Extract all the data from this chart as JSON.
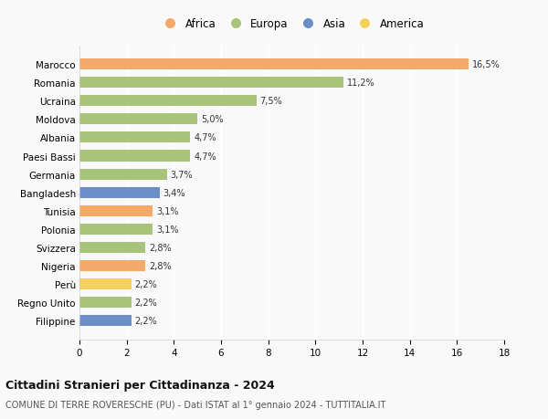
{
  "countries": [
    "Marocco",
    "Romania",
    "Ucraina",
    "Moldova",
    "Albania",
    "Paesi Bassi",
    "Germania",
    "Bangladesh",
    "Tunisia",
    "Polonia",
    "Svizzera",
    "Nigeria",
    "Perù",
    "Regno Unito",
    "Filippine"
  ],
  "values": [
    16.5,
    11.2,
    7.5,
    5.0,
    4.7,
    4.7,
    3.7,
    3.4,
    3.1,
    3.1,
    2.8,
    2.8,
    2.2,
    2.2,
    2.2
  ],
  "labels": [
    "16,5%",
    "11,2%",
    "7,5%",
    "5,0%",
    "4,7%",
    "4,7%",
    "3,7%",
    "3,4%",
    "3,1%",
    "3,1%",
    "2,8%",
    "2,8%",
    "2,2%",
    "2,2%",
    "2,2%"
  ],
  "continent": [
    "Africa",
    "Europa",
    "Europa",
    "Europa",
    "Europa",
    "Europa",
    "Europa",
    "Asia",
    "Africa",
    "Europa",
    "Europa",
    "Africa",
    "America",
    "Europa",
    "Asia"
  ],
  "colors": {
    "Africa": "#F4A96A",
    "Europa": "#A8C47A",
    "Asia": "#6B8EC8",
    "America": "#F5D060"
  },
  "legend_order": [
    "Africa",
    "Europa",
    "Asia",
    "America"
  ],
  "xlim": [
    0,
    18
  ],
  "xticks": [
    0,
    2,
    4,
    6,
    8,
    10,
    12,
    14,
    16,
    18
  ],
  "title": "Cittadini Stranieri per Cittadinanza - 2024",
  "subtitle": "COMUNE DI TERRE ROVERESCHE (PU) - Dati ISTAT al 1° gennaio 2024 - TUTTITALIA.IT",
  "background_color": "#f9f9f9",
  "bar_height": 0.6
}
